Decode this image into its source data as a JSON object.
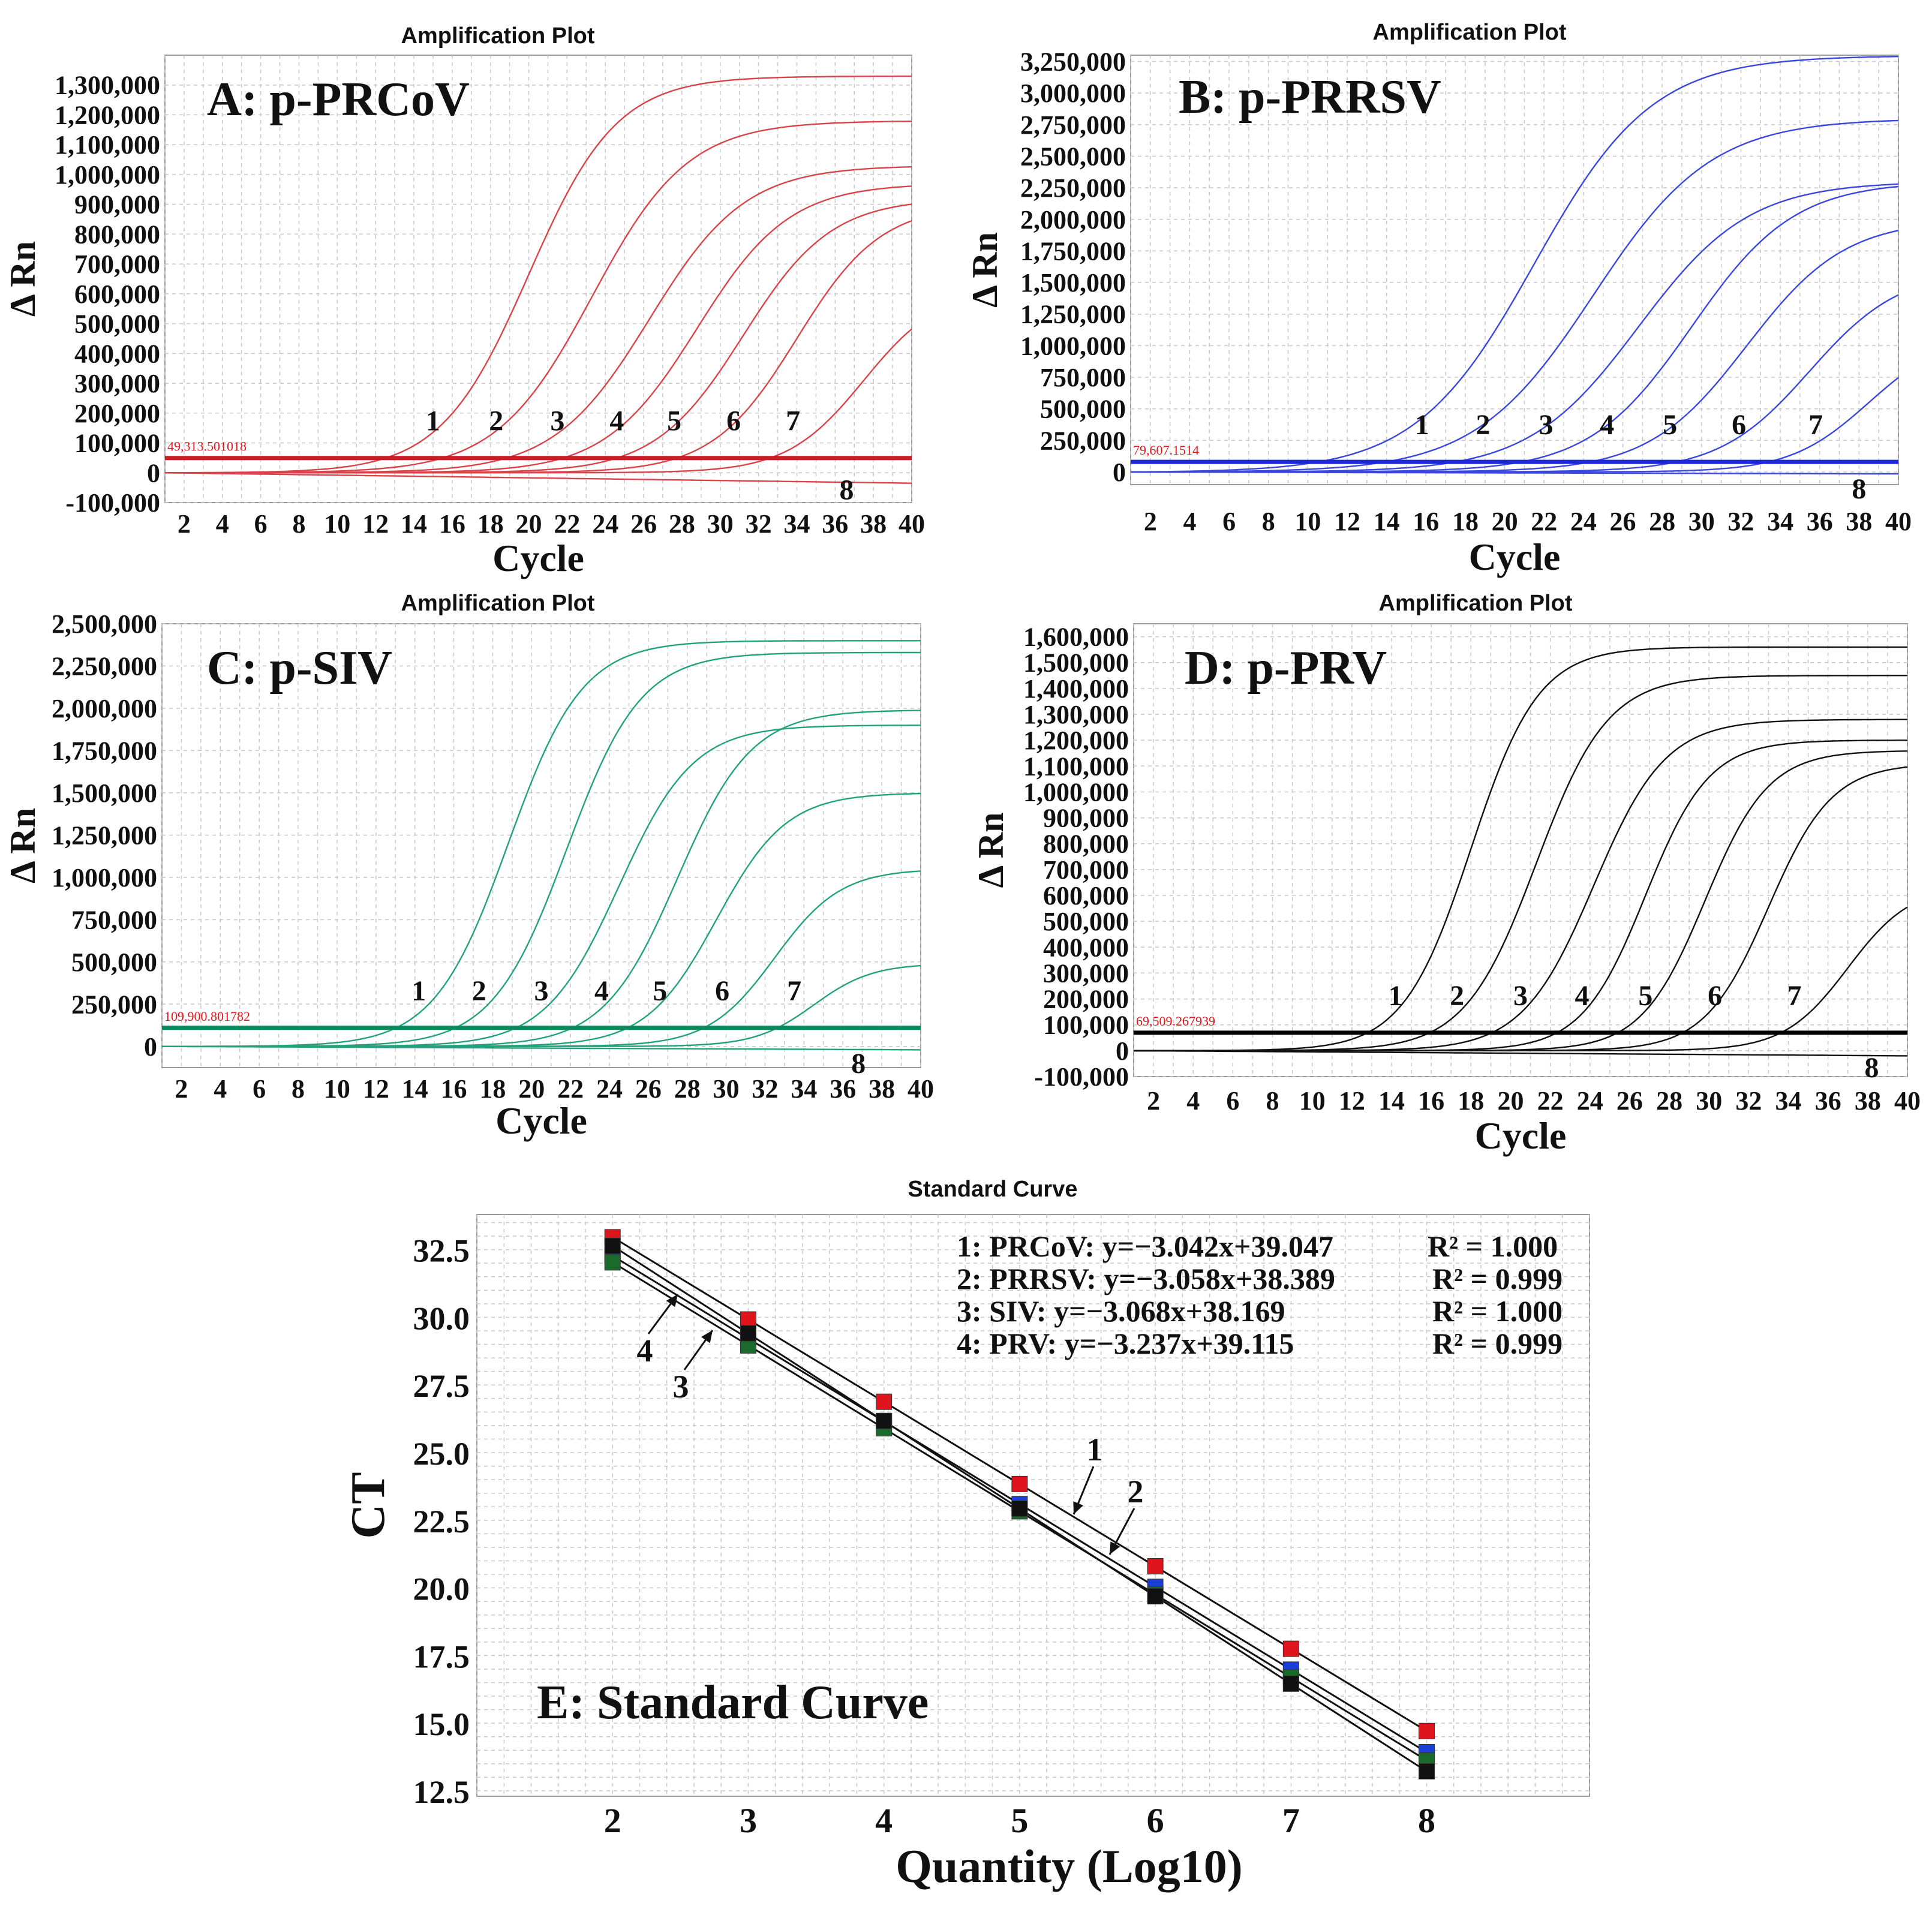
{
  "chart_data": [
    {
      "id": "A",
      "type": "line",
      "title": "Amplification Plot",
      "panel_label": "A: p-PRCoV",
      "xlabel": "Cycle",
      "ylabel": "Δ Rn",
      "xlim": [
        1,
        40
      ],
      "ylim": [
        -100000,
        1400000
      ],
      "x_ticks": [
        2,
        4,
        6,
        8,
        10,
        12,
        14,
        16,
        18,
        20,
        22,
        24,
        26,
        28,
        30,
        32,
        34,
        36,
        38,
        40
      ],
      "y_ticks": [
        -100000,
        0,
        100000,
        200000,
        300000,
        400000,
        500000,
        600000,
        700000,
        800000,
        900000,
        1000000,
        1100000,
        1200000,
        1300000
      ],
      "y_tick_labels": [
        "-100,000",
        "0",
        "100,000",
        "200,000",
        "300,000",
        "400,000",
        "500,000",
        "600,000",
        "700,000",
        "800,000",
        "900,000",
        "1,000,000",
        "1,100,000",
        "1,200,000",
        "1,300,000"
      ],
      "color": "#d9434a",
      "threshold": {
        "value": 49313.501018,
        "label": "49,313.501018",
        "color": "#cc1a24"
      },
      "series": [
        {
          "name": "1",
          "plateau": 1330000,
          "midpoint": 20.0,
          "slope": 2.3,
          "label_x": 15.0
        },
        {
          "name": "2",
          "plateau": 1180000,
          "midpoint": 23.3,
          "slope": 2.5,
          "label_x": 18.3
        },
        {
          "name": "3",
          "plateau": 1030000,
          "midpoint": 26.3,
          "slope": 2.5,
          "label_x": 21.5
        },
        {
          "name": "4",
          "plateau": 970000,
          "midpoint": 28.8,
          "slope": 2.4,
          "label_x": 24.6
        },
        {
          "name": "5",
          "plateau": 920000,
          "midpoint": 31.2,
          "slope": 2.3,
          "label_x": 27.6
        },
        {
          "name": "6",
          "plateau": 900000,
          "midpoint": 34.0,
          "slope": 2.2,
          "label_x": 30.7
        },
        {
          "name": "7",
          "plateau": 620000,
          "midpoint": 37.5,
          "slope": 2.0,
          "label_x": 33.8
        },
        {
          "name": "8",
          "plateau": 0,
          "midpoint": 0,
          "slope": 1,
          "drift": -35000,
          "label_x": 36.6
        }
      ]
    },
    {
      "id": "B",
      "type": "line",
      "title": "Amplification Plot",
      "panel_label": "B: p-PRRSV",
      "xlabel": "Cycle",
      "ylabel": "Δ Rn",
      "xlim": [
        1,
        40
      ],
      "ylim": [
        -100000,
        3300000
      ],
      "x_ticks": [
        2,
        4,
        6,
        8,
        10,
        12,
        14,
        16,
        18,
        20,
        22,
        24,
        26,
        28,
        30,
        32,
        34,
        36,
        38,
        40
      ],
      "y_ticks": [
        0,
        250000,
        500000,
        750000,
        1000000,
        1250000,
        1500000,
        1750000,
        2000000,
        2250000,
        2500000,
        2750000,
        3000000,
        3250000
      ],
      "y_tick_labels": [
        "0",
        "250,000",
        "500,000",
        "750,000",
        "1,000,000",
        "1,250,000",
        "1,500,000",
        "1,750,000",
        "2,000,000",
        "2,250,000",
        "2,500,000",
        "2,750,000",
        "3,000,000",
        "3,250,000"
      ],
      "color": "#3a46e0",
      "threshold": {
        "value": 79607.1514,
        "label": "79,607.1514",
        "color": "#1c28d6"
      },
      "series": [
        {
          "name": "1",
          "plateau": 3300000,
          "midpoint": 21.5,
          "slope": 3.0,
          "label_x": 15.8
        },
        {
          "name": "2",
          "plateau": 2800000,
          "midpoint": 24.5,
          "slope": 3.0,
          "label_x": 18.9
        },
        {
          "name": "3",
          "plateau": 2300000,
          "midpoint": 26.8,
          "slope": 2.8,
          "label_x": 22.1
        },
        {
          "name": "4",
          "plateau": 2300000,
          "midpoint": 29.5,
          "slope": 2.6,
          "label_x": 25.2
        },
        {
          "name": "5",
          "plateau": 2000000,
          "midpoint": 32.3,
          "slope": 2.5,
          "label_x": 28.4
        },
        {
          "name": "6",
          "plateau": 1600000,
          "midpoint": 35.5,
          "slope": 2.3,
          "label_x": 31.9
        },
        {
          "name": "7",
          "plateau": 1100000,
          "midpoint": 38.5,
          "slope": 2.0,
          "label_x": 35.8
        },
        {
          "name": "8",
          "plateau": 0,
          "midpoint": 0,
          "slope": 1,
          "drift": -15000,
          "label_x": 38.0
        }
      ]
    },
    {
      "id": "C",
      "type": "line",
      "title": "Amplification Plot",
      "panel_label": "C: p-SIV",
      "xlabel": "Cycle",
      "ylabel": "Δ Rn",
      "xlim": [
        1,
        40
      ],
      "ylim": [
        -125000,
        2500000
      ],
      "x_ticks": [
        2,
        4,
        6,
        8,
        10,
        12,
        14,
        16,
        18,
        20,
        22,
        24,
        26,
        28,
        30,
        32,
        34,
        36,
        38,
        40
      ],
      "y_ticks": [
        0,
        250000,
        500000,
        750000,
        1000000,
        1250000,
        1500000,
        1750000,
        2000000,
        2250000,
        2500000
      ],
      "y_tick_labels": [
        "0",
        "250,000",
        "500,000",
        "750,000",
        "1,000,000",
        "1,250,000",
        "1,500,000",
        "1,750,000",
        "2,000,000",
        "2,250,000",
        "2,500,000"
      ],
      "color": "#21a27c",
      "threshold": {
        "value": 109900.801782,
        "label": "109,900.801782",
        "color": "#0a8a5a"
      },
      "series": [
        {
          "name": "1",
          "plateau": 2400000,
          "midpoint": 18.8,
          "slope": 1.9,
          "label_x": 14.2
        },
        {
          "name": "2",
          "plateau": 2330000,
          "midpoint": 21.8,
          "slope": 1.9,
          "label_x": 17.3
        },
        {
          "name": "3",
          "plateau": 1900000,
          "midpoint": 24.5,
          "slope": 1.9,
          "label_x": 20.5
        },
        {
          "name": "4",
          "plateau": 1990000,
          "midpoint": 27.5,
          "slope": 1.9,
          "label_x": 23.6
        },
        {
          "name": "5",
          "plateau": 1500000,
          "midpoint": 29.5,
          "slope": 1.8,
          "label_x": 26.6
        },
        {
          "name": "6",
          "plateau": 1050000,
          "midpoint": 32.5,
          "slope": 1.7,
          "label_x": 29.8
        },
        {
          "name": "7",
          "plateau": 490000,
          "midpoint": 34.5,
          "slope": 1.5,
          "label_x": 33.5
        },
        {
          "name": "8",
          "plateau": 0,
          "midpoint": 0,
          "slope": 1,
          "drift": -20000,
          "label_x": 36.8
        }
      ]
    },
    {
      "id": "D",
      "type": "line",
      "title": "Amplification Plot",
      "panel_label": "D: p-PRV",
      "xlabel": "Cycle",
      "ylabel": "Δ Rn",
      "xlim": [
        1,
        40
      ],
      "ylim": [
        -100000,
        1650000
      ],
      "x_ticks": [
        2,
        4,
        6,
        8,
        10,
        12,
        14,
        16,
        18,
        20,
        22,
        24,
        26,
        28,
        30,
        32,
        34,
        36,
        38,
        40
      ],
      "y_ticks": [
        -100000,
        0,
        100000,
        200000,
        300000,
        400000,
        500000,
        600000,
        700000,
        800000,
        900000,
        1000000,
        1100000,
        1200000,
        1300000,
        1400000,
        1500000,
        1600000
      ],
      "y_tick_labels": [
        "-100,000",
        "0",
        "100,000",
        "200,000",
        "300,000",
        "400,000",
        "500,000",
        "600,000",
        "700,000",
        "800,000",
        "900,000",
        "1,000,000",
        "1,100,000",
        "1,200,000",
        "1,300,000",
        "1,400,000",
        "1,500,000",
        "1,600,000"
      ],
      "color": "#111111",
      "threshold": {
        "value": 69509.267939,
        "label": "69,509.267939",
        "color": "#000000"
      },
      "series": [
        {
          "name": "1",
          "plateau": 1560000,
          "midpoint": 18.0,
          "slope": 1.7,
          "label_x": 14.2
        },
        {
          "name": "2",
          "plateau": 1450000,
          "midpoint": 21.3,
          "slope": 1.8,
          "label_x": 17.3
        },
        {
          "name": "3",
          "plateau": 1280000,
          "midpoint": 24.2,
          "slope": 1.8,
          "label_x": 20.5
        },
        {
          "name": "4",
          "plateau": 1200000,
          "midpoint": 26.8,
          "slope": 1.6,
          "label_x": 23.6
        },
        {
          "name": "5",
          "plateau": 1160000,
          "midpoint": 29.8,
          "slope": 1.6,
          "label_x": 26.8
        },
        {
          "name": "6",
          "plateau": 1110000,
          "midpoint": 33.0,
          "slope": 1.6,
          "label_x": 30.3
        },
        {
          "name": "7",
          "plateau": 640000,
          "midpoint": 37.0,
          "slope": 1.6,
          "label_x": 34.3
        },
        {
          "name": "8",
          "plateau": 0,
          "midpoint": 0,
          "slope": 1,
          "drift": -20000,
          "label_x": 38.2
        }
      ]
    },
    {
      "id": "E",
      "type": "scatter",
      "title": "Standard Curve",
      "panel_label": "E: Standard Curve",
      "xlabel": "Quantity (Log10)",
      "ylabel": "CT",
      "xlim": [
        1,
        9.2
      ],
      "ylim": [
        12.3,
        33.8
      ],
      "x_ticks": [
        2,
        3,
        4,
        5,
        6,
        7,
        8
      ],
      "x_tick_labels": [
        "2",
        "3",
        "4",
        "5",
        "6",
        "7",
        "8"
      ],
      "y_ticks": [
        12.5,
        15.0,
        17.5,
        20.0,
        22.5,
        25.0,
        27.5,
        30.0,
        32.5
      ],
      "y_tick_labels": [
        "12.5",
        "15.0",
        "17.5",
        "20.0",
        "22.5",
        "25.0",
        "27.5",
        "30.0",
        "32.5"
      ],
      "x": [
        2,
        3,
        4,
        5,
        6,
        7,
        8
      ],
      "series": [
        {
          "name": "1",
          "label": "PRCoV",
          "equation": "y=−3.042x+39.047",
          "r2": "R² = 1.000",
          "slope": -3.042,
          "intercept": 39.047,
          "color": "#e0141c",
          "values": [
            32.96,
            29.92,
            26.88,
            23.84,
            20.8,
            17.75,
            14.71
          ]
        },
        {
          "name": "2",
          "label": "PRRSV",
          "equation": "y=−3.058x+38.389",
          "r2": "R² = 0.999",
          "slope": -3.058,
          "intercept": 38.389,
          "color": "#1c3ed6",
          "values": [
            32.27,
            29.22,
            26.16,
            23.1,
            20.04,
            16.98,
            13.93
          ]
        },
        {
          "name": "3",
          "label": "SIV",
          "equation": "y=−3.068x+38.169",
          "r2": "R² = 1.000",
          "slope": -3.068,
          "intercept": 38.169,
          "color": "#1a6a2c",
          "values": [
            32.03,
            28.96,
            25.9,
            22.83,
            19.76,
            16.69,
            13.62
          ]
        },
        {
          "name": "4",
          "label": "PRV",
          "equation": "y=−3.237x+39.115",
          "r2": "R² = 0.999",
          "slope": -3.237,
          "intercept": 39.115,
          "color": "#111111",
          "values": [
            32.64,
            29.41,
            26.17,
            22.93,
            19.69,
            16.46,
            13.22
          ]
        }
      ],
      "arrow_labels": [
        "1",
        "2",
        "3",
        "4"
      ]
    }
  ]
}
